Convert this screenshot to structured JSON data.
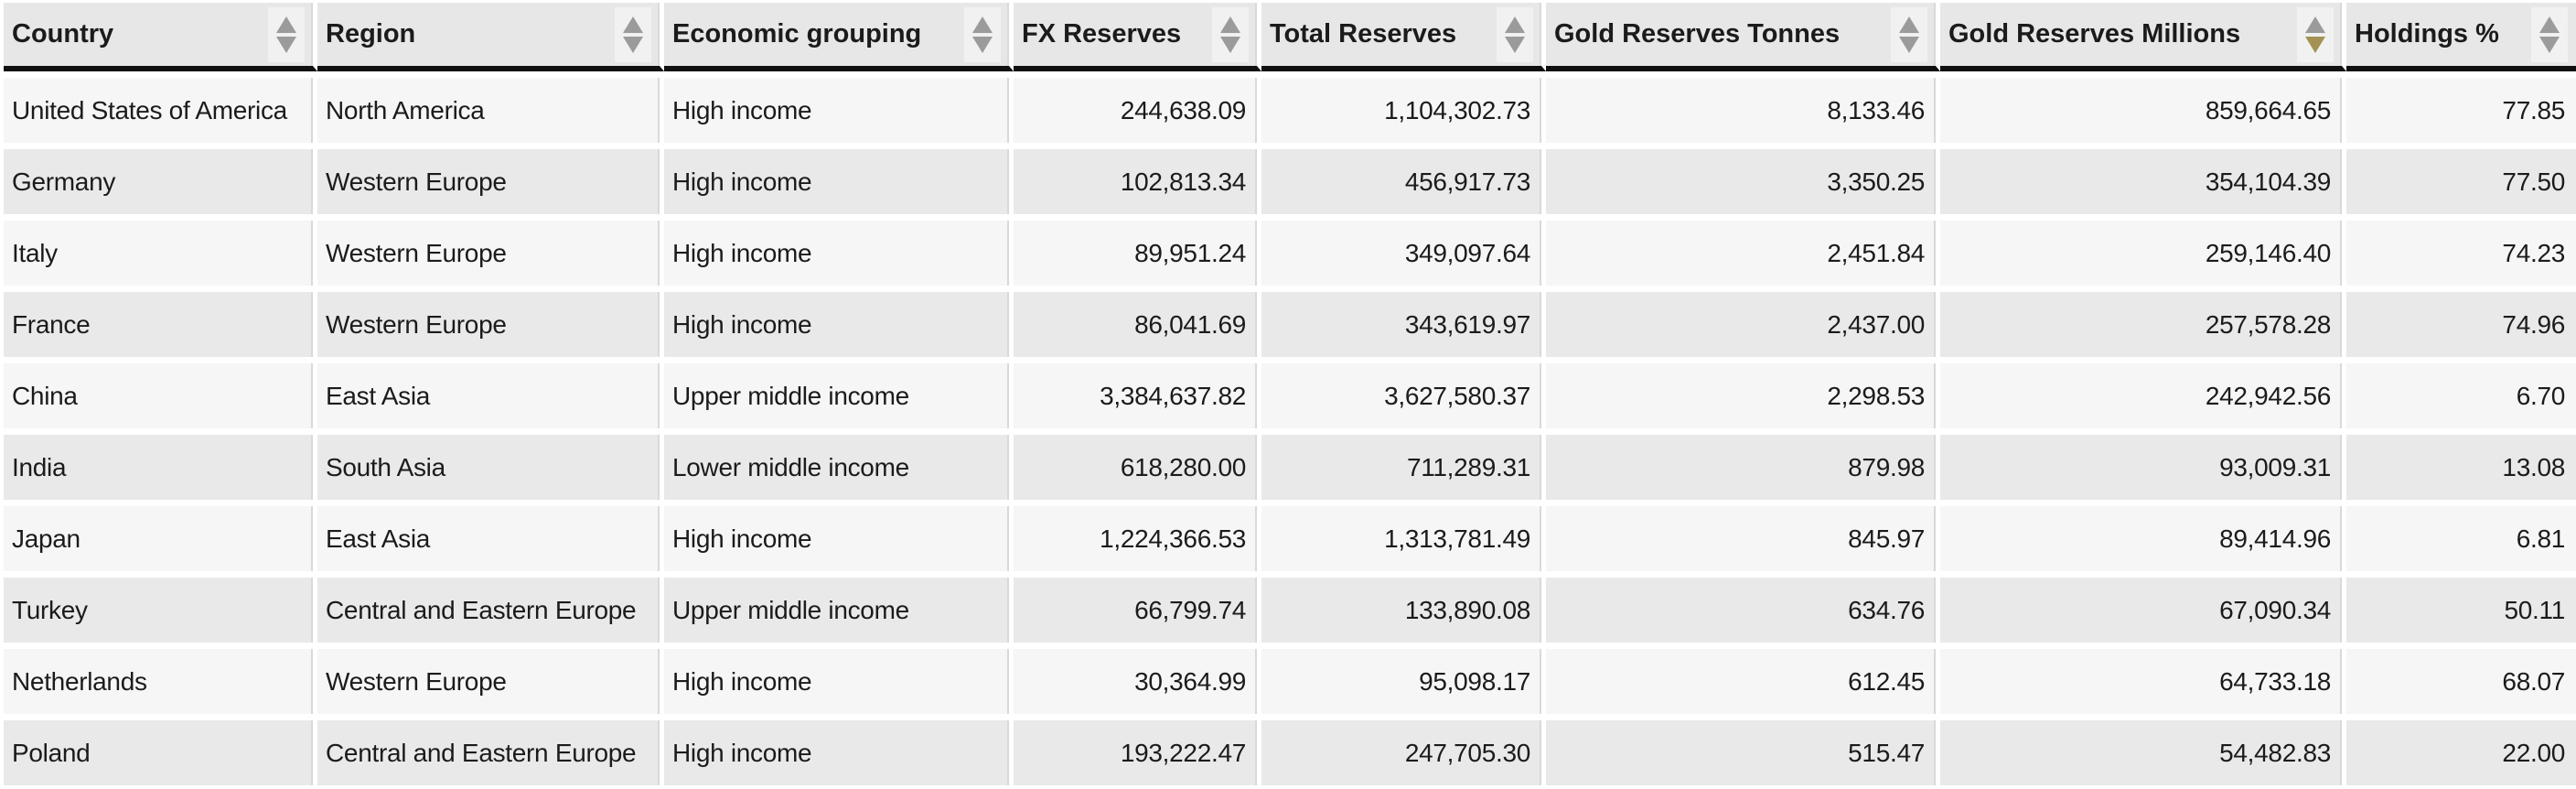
{
  "table": {
    "columns": [
      {
        "id": "country",
        "label": "Country",
        "align": "left",
        "sort": "none"
      },
      {
        "id": "region",
        "label": "Region",
        "align": "left",
        "sort": "none"
      },
      {
        "id": "economic-grouping",
        "label": "Economic grouping",
        "align": "left",
        "sort": "none"
      },
      {
        "id": "fx-reserves",
        "label": "FX Reserves",
        "align": "right",
        "sort": "none"
      },
      {
        "id": "total-reserves",
        "label": "Total Reserves",
        "align": "right",
        "sort": "none"
      },
      {
        "id": "gold-reserves-tonnes",
        "label": "Gold Reserves Tonnes",
        "align": "right",
        "sort": "none"
      },
      {
        "id": "gold-reserves-millions",
        "label": "Gold Reserves Millions",
        "align": "right",
        "sort": "desc"
      },
      {
        "id": "holdings-percent",
        "label": "Holdings %",
        "align": "right",
        "sort": "none"
      }
    ],
    "rows": [
      [
        "United States of America",
        "North America",
        "High income",
        "244,638.09",
        "1,104,302.73",
        "8,133.46",
        "859,664.65",
        "77.85"
      ],
      [
        "Germany",
        "Western Europe",
        "High income",
        "102,813.34",
        "456,917.73",
        "3,350.25",
        "354,104.39",
        "77.50"
      ],
      [
        "Italy",
        "Western Europe",
        "High income",
        "89,951.24",
        "349,097.64",
        "2,451.84",
        "259,146.40",
        "74.23"
      ],
      [
        "France",
        "Western Europe",
        "High income",
        "86,041.69",
        "343,619.97",
        "2,437.00",
        "257,578.28",
        "74.96"
      ],
      [
        "China",
        "East Asia",
        "Upper middle income",
        "3,384,637.82",
        "3,627,580.37",
        "2,298.53",
        "242,942.56",
        "6.70"
      ],
      [
        "India",
        "South Asia",
        "Lower middle income",
        "618,280.00",
        "711,289.31",
        "879.98",
        "93,009.31",
        "13.08"
      ],
      [
        "Japan",
        "East Asia",
        "High income",
        "1,224,366.53",
        "1,313,781.49",
        "845.97",
        "89,414.96",
        "6.81"
      ],
      [
        "Turkey",
        "Central and Eastern Europe",
        "Upper middle income",
        "66,799.74",
        "133,890.08",
        "634.76",
        "67,090.34",
        "50.11"
      ],
      [
        "Netherlands",
        "Western Europe",
        "High income",
        "30,364.99",
        "95,098.17",
        "612.45",
        "64,733.18",
        "68.07"
      ],
      [
        "Poland",
        "Central and Eastern Europe",
        "High income",
        "193,222.47",
        "247,705.30",
        "515.47",
        "54,482.83",
        "22.00"
      ]
    ]
  },
  "colors": {
    "header_bg": "#e7e7e7",
    "header_border": "#101010",
    "row_odd_bg": "#f6f6f6",
    "row_even_bg": "#e9e9e9",
    "divider": "#d9d9d9",
    "sort_box_bg": "#f1f1f1",
    "sort_arrow_inactive": "#9b9b9b",
    "sort_arrow_active": "#a39254",
    "text": "#1b1b1b"
  },
  "icons": {
    "sort_ascending": "sort-asc-arrow-icon",
    "sort_descending": "sort-desc-arrow-icon"
  }
}
